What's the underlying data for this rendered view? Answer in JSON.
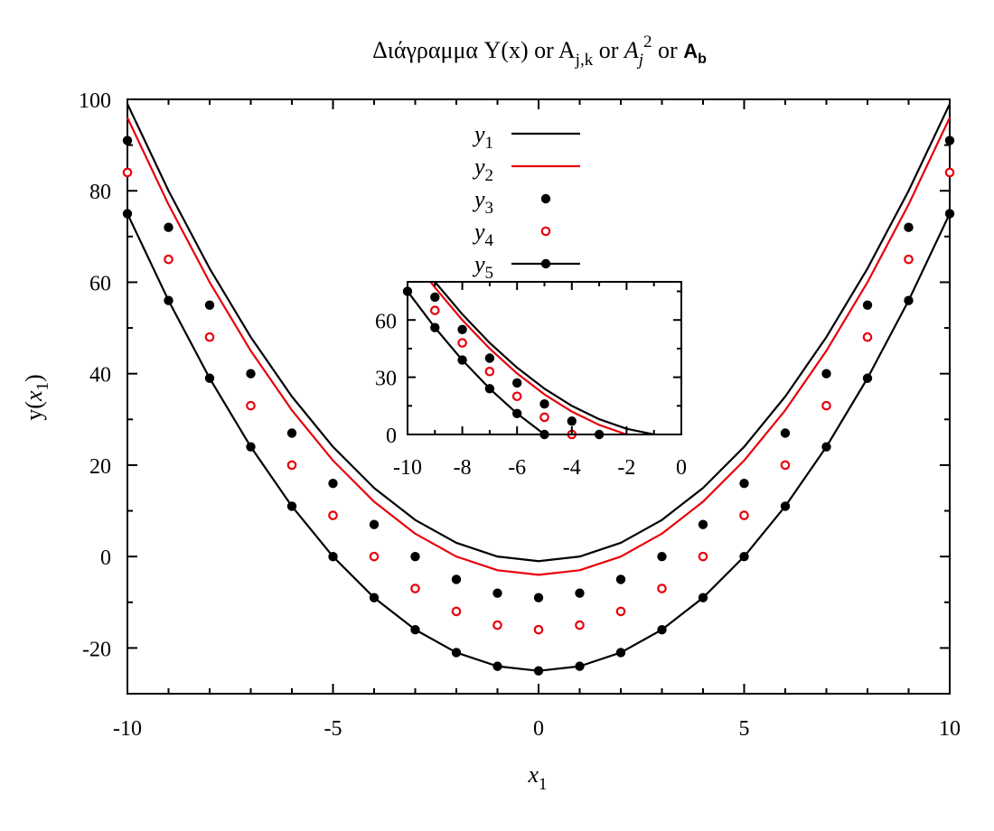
{
  "title": {
    "greek": "Διάγραμμα",
    "y_of_x": "Y(x)",
    "or1": "or",
    "A1_base": "A",
    "A1_sub": "j,k",
    "or2": "or",
    "A2_base": "A",
    "A2_sub": "j",
    "A2_sup": "2",
    "or3": "or",
    "A3_base": "A",
    "A3_sub": "b"
  },
  "axes": {
    "xlabel_base": "x",
    "xlabel_sub": "1",
    "ylabel_pre": "y(",
    "ylabel_var": "x",
    "ylabel_sub": "1",
    "ylabel_post": ")"
  },
  "colors": {
    "black": "#000000",
    "red": "#e8000b"
  },
  "chart_data": [
    {
      "type": "line",
      "title": "Διάγραμμα Y(x) or Aj,k or Aj2 or Ab",
      "xlabel": "x1",
      "ylabel": "y(x1)",
      "xlim": [
        -10,
        10
      ],
      "ylim": [
        -30,
        100
      ],
      "xticks": [
        -10,
        -5,
        0,
        5,
        10
      ],
      "xtick_labels": [
        "-10",
        "-5",
        "0",
        "5",
        "10"
      ],
      "yticks": [
        -20,
        0,
        20,
        40,
        60,
        80,
        100
      ],
      "ytick_labels": [
        "-20",
        "0",
        "20",
        "40",
        "60",
        "80",
        "100"
      ],
      "grid": false,
      "legend": "top-center",
      "x": [
        -10,
        -9,
        -8,
        -7,
        -6,
        -5,
        -4,
        -3,
        -2,
        -1,
        0,
        1,
        2,
        3,
        4,
        5,
        6,
        7,
        8,
        9,
        10
      ],
      "series": [
        {
          "name": "y1",
          "label_base": "y",
          "label_sub": "1",
          "style": "line",
          "color": "#000000",
          "values": [
            99,
            80,
            63,
            48,
            35,
            24,
            15,
            8,
            3,
            0,
            -1,
            0,
            3,
            8,
            15,
            24,
            35,
            48,
            63,
            80,
            99
          ]
        },
        {
          "name": "y2",
          "label_base": "y",
          "label_sub": "2",
          "style": "line",
          "color": "#e8000b",
          "values": [
            96,
            77,
            60,
            45,
            32,
            21,
            12,
            5,
            0,
            -3,
            -4,
            -3,
            0,
            5,
            12,
            21,
            32,
            45,
            60,
            77,
            96
          ]
        },
        {
          "name": "y3",
          "label_base": "y",
          "label_sub": "3",
          "style": "points",
          "marker": "filled-circle",
          "color": "#000000",
          "values": [
            91,
            72,
            55,
            40,
            27,
            16,
            7,
            0,
            -5,
            -8,
            -9,
            -8,
            -5,
            0,
            7,
            16,
            27,
            40,
            55,
            72,
            91
          ]
        },
        {
          "name": "y4",
          "label_base": "y",
          "label_sub": "4",
          "style": "points",
          "marker": "open-circle",
          "color": "#e8000b",
          "values": [
            84,
            65,
            48,
            33,
            20,
            9,
            0,
            -7,
            -12,
            -15,
            -16,
            -15,
            -12,
            -7,
            0,
            9,
            20,
            33,
            48,
            65,
            84
          ]
        },
        {
          "name": "y5",
          "label_base": "y",
          "label_sub": "5",
          "style": "linespoints",
          "marker": "filled-circle",
          "color": "#000000",
          "values": [
            75,
            56,
            39,
            24,
            11,
            0,
            -9,
            -16,
            -21,
            -24,
            -25,
            -24,
            -21,
            -16,
            -9,
            0,
            11,
            24,
            39,
            56,
            75
          ]
        }
      ]
    },
    {
      "type": "line",
      "role": "inset",
      "xlim": [
        -10,
        0
      ],
      "ylim": [
        0,
        80
      ],
      "xticks": [
        -10,
        -8,
        -6,
        -4,
        -2,
        0
      ],
      "xtick_labels": [
        "-10",
        "-8",
        "-6",
        "-4",
        "-2",
        "0"
      ],
      "yticks": [
        0,
        30,
        60
      ],
      "ytick_labels": [
        "0",
        "30",
        "60"
      ],
      "grid": false
    }
  ]
}
